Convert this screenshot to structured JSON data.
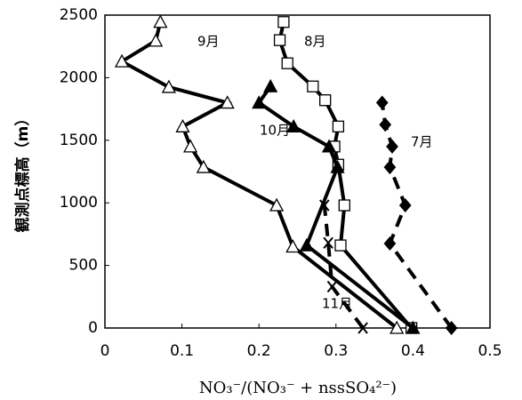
{
  "chart_data": {
    "type": "line",
    "xlabel": "NO₃⁻/(NO₃⁻ + nssSO₄²⁻)",
    "ylabel": "観測点標高（m）",
    "xlim": [
      0,
      0.5
    ],
    "xticks": [
      0,
      0.1,
      0.2,
      0.3,
      0.4,
      0.5
    ],
    "ylim": [
      0,
      2500
    ],
    "yticks": [
      0,
      500,
      1000,
      1500,
      2000,
      2500
    ],
    "series": [
      {
        "name": "7月",
        "color": "#000000",
        "marker": "diamond",
        "dashed": true,
        "x": [
          0.45,
          0.37,
          0.39,
          0.37,
          0.373,
          0.364,
          0.36
        ],
        "values": [
          0,
          675,
          980,
          1285,
          1450,
          1625,
          1800
        ]
      },
      {
        "name": "8月",
        "color": "#000000",
        "marker": "square",
        "dashed": false,
        "x": [
          0.398,
          0.306,
          0.311,
          0.303,
          0.298,
          0.303,
          0.286,
          0.27,
          0.237,
          0.227,
          0.232
        ],
        "values": [
          0,
          660,
          980,
          1305,
          1450,
          1610,
          1820,
          1930,
          2115,
          2300,
          2445
        ]
      },
      {
        "name": "9月",
        "color": "#000000",
        "marker": "triangle",
        "dashed": false,
        "x": [
          0.379,
          0.244,
          0.223,
          0.128,
          0.111,
          0.101,
          0.159,
          0.083,
          0.022,
          0.066,
          0.072
        ],
        "values": [
          0,
          650,
          980,
          1285,
          1450,
          1610,
          1800,
          1925,
          2130,
          2295,
          2445
        ]
      },
      {
        "name": "10月",
        "color": "#000000",
        "marker": "filled-triangle",
        "dashed": false,
        "x": [
          0.4,
          0.262,
          0.302,
          0.291,
          0.245,
          0.2,
          0.215
        ],
        "values": [
          0,
          660,
          1285,
          1450,
          1610,
          1800,
          1930
        ]
      },
      {
        "name": "11月",
        "color": "#000000",
        "marker": "cross",
        "dashed": true,
        "x": [
          0.335,
          0.295,
          0.29,
          0.285
        ],
        "values": [
          0,
          330,
          680,
          980
        ]
      }
    ]
  }
}
